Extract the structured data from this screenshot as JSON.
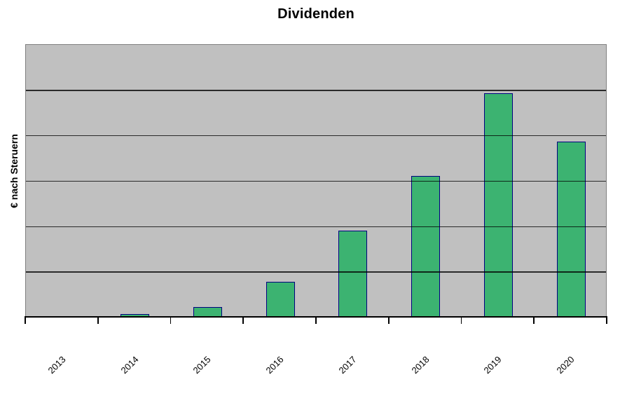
{
  "chart_data": {
    "type": "bar",
    "title": "Dividenden",
    "xlabel": "",
    "ylabel": "€ nach Steruern",
    "categories": [
      "2013",
      "2014",
      "2015",
      "2016",
      "2017",
      "2018",
      "2019",
      "2020"
    ],
    "series": [
      {
        "name": "Dividenden",
        "values": [
          0,
          0.06,
          0.22,
          0.77,
          1.9,
          3.1,
          4.92,
          3.85
        ]
      }
    ],
    "ylim": [
      0,
      6
    ],
    "y_axis_numeric_labels_visible": false,
    "value_note": "y-axis has no numeric tick labels; values estimated in gridline intervals (plot spans 6 equal gridline intervals)",
    "grid": true,
    "gridline_count_inner": 5,
    "legend": false,
    "x_tick_label_rotation_deg": 45,
    "colors": {
      "bar_fill": "#3CB371",
      "bar_border": "#000080",
      "plot_background": "#C0C0C0",
      "gridline": "#000000",
      "axis_line": "#000000",
      "page_background": "#FFFFFF",
      "text": "#000000"
    }
  }
}
